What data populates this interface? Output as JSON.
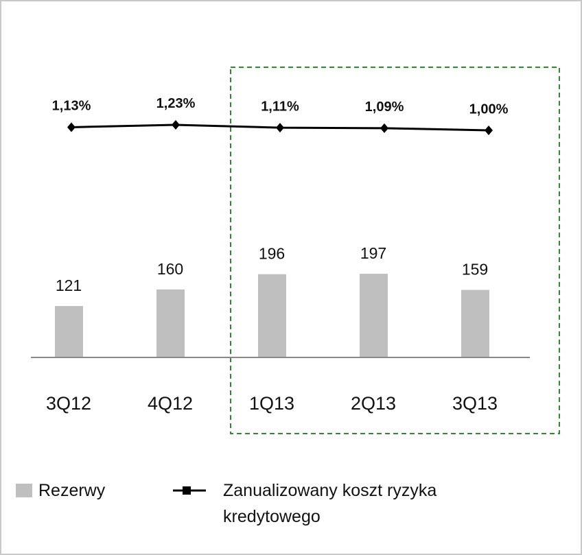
{
  "chart_data": {
    "type": "bar-line",
    "categories": [
      "3Q12",
      "4Q12",
      "1Q13",
      "2Q13",
      "3Q13"
    ],
    "series": [
      {
        "name": "Rezerwy",
        "color": "#bfbfbf",
        "values": [
          121,
          160,
          196,
          197,
          159
        ]
      },
      {
        "name": "Zanualizowany koszt ryzyka kredytowego",
        "color": "#000000",
        "axis": "y2",
        "values": [
          1.13,
          1.23,
          1.11,
          1.09,
          1.0
        ],
        "value_labels": [
          "1,13%",
          "1,23%",
          "1,11%",
          "1,09%",
          "1,00%"
        ]
      }
    ],
    "ylim": [
      0,
      680
    ],
    "y2lim": [
      0,
      2
    ]
  }
}
